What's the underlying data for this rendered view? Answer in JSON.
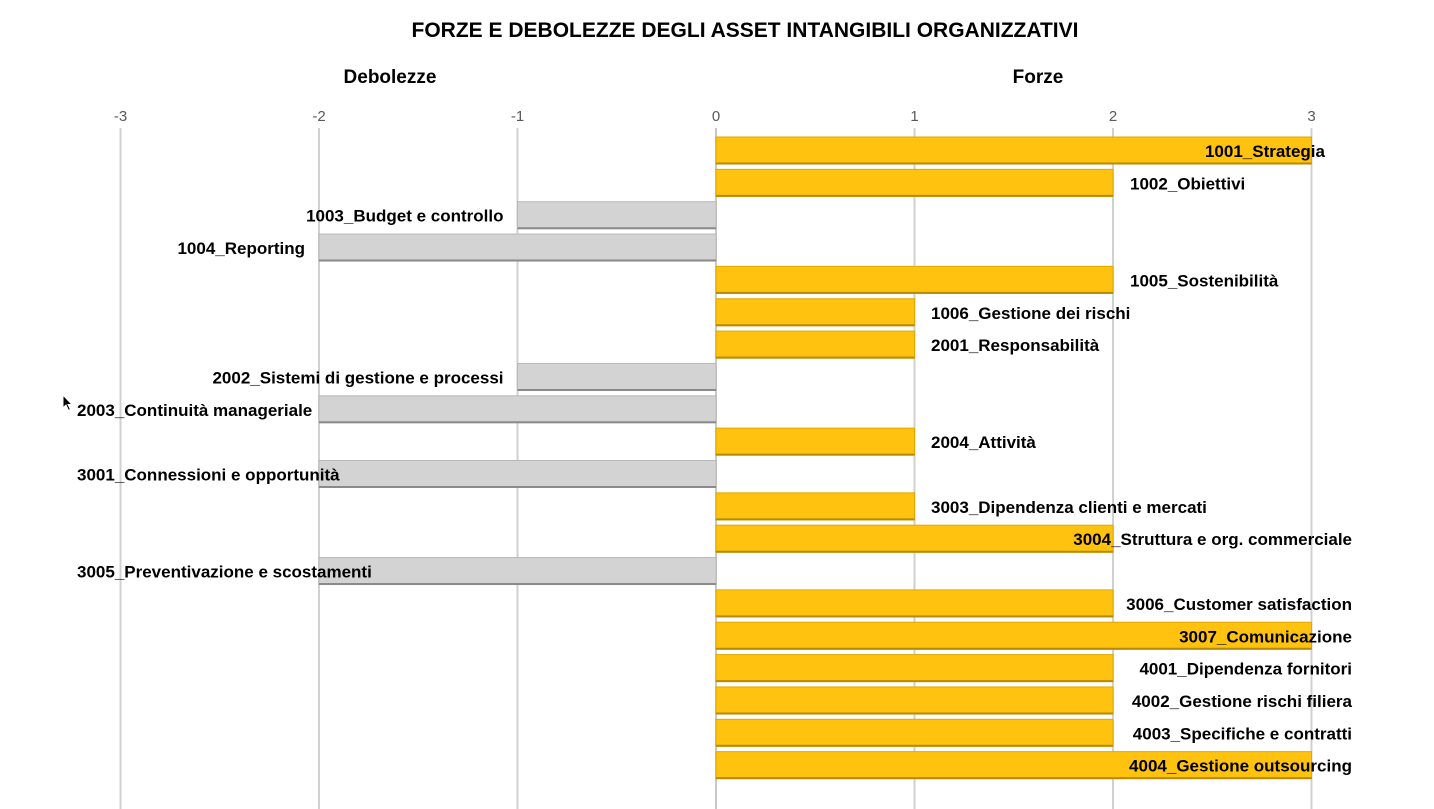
{
  "chart_data": {
    "type": "bar",
    "orientation": "horizontal",
    "title": "FORZE E DEBOLEZZE DEGLI ASSET INTANGIBILI ORGANIZZATIVI",
    "left_header": "Debolezze",
    "right_header": "Forze",
    "xlim": [
      -3,
      3
    ],
    "ticks": [
      -3,
      -2,
      -1,
      0,
      1,
      2,
      3
    ],
    "grid": true,
    "colors": {
      "positive": "#FFC20E",
      "negative": "#D3D3D3"
    },
    "categories": [
      "1001_Strategia",
      "1002_Obiettivi",
      "1003_Budget e controllo",
      "1004_Reporting",
      "1005_Sostenibilità",
      "1006_Gestione dei rischi",
      "2001_Responsabilità",
      "2002_Sistemi di gestione e processi",
      "2003_Continuità manageriale",
      "2004_Attività",
      "3001_Connessioni e opportunità",
      "3003_Dipendenza clienti e mercati",
      "3004_Struttura e org. commerciale",
      "3005_Preventivazione e scostamenti",
      "3006_Customer satisfaction",
      "3007_Comunicazione",
      "4001_Dipendenza fornitori",
      "4002_Gestione rischi filiera",
      "4003_Specifiche e contratti",
      "4004_Gestione outsourcing"
    ],
    "values": [
      3,
      2,
      -1,
      -2,
      2,
      1,
      1,
      -1,
      -2,
      1,
      -2,
      1,
      2,
      -2,
      2,
      3,
      2,
      2,
      2,
      3
    ]
  }
}
